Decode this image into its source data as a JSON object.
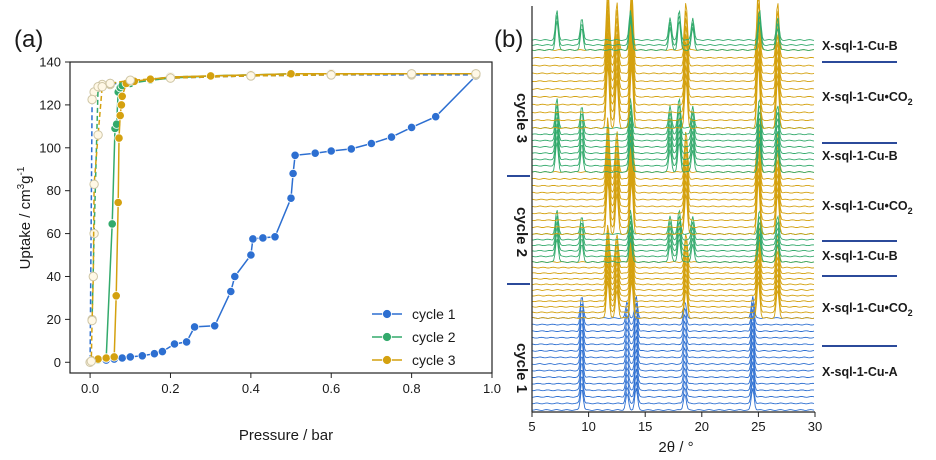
{
  "figure": {
    "panel_a_label": "(a)",
    "panel_b_label": "(b)"
  },
  "colors": {
    "cycle1": "#2d6fd1",
    "cycle2": "#33aa6c",
    "cycle3": "#d4a10f",
    "divider": "#2b4a9a",
    "axis": "#222222"
  },
  "chart_data": [
    {
      "type": "line",
      "panel": "(a)",
      "xlabel": "Pressure / bar",
      "ylabel": "Uptake / cm",
      "ylabel_sup1": "3",
      "ylabel_mid": "g",
      "ylabel_sup2": "-1",
      "xlim": [
        -0.05,
        1.0
      ],
      "ylim": [
        -5,
        140
      ],
      "xticks": [
        "0.0",
        "0.2",
        "0.4",
        "0.6",
        "0.8",
        "1.0"
      ],
      "xtick_values": [
        0.0,
        0.2,
        0.4,
        0.6,
        0.8,
        1.0
      ],
      "yticks": [
        "0",
        "20",
        "40",
        "60",
        "80",
        "100",
        "120",
        "140"
      ],
      "ytick_values": [
        0,
        20,
        40,
        60,
        80,
        100,
        120,
        140
      ],
      "legend_position": "bottom-right",
      "legend": [
        "cycle 1",
        "cycle 2",
        "cycle 3"
      ],
      "series": [
        {
          "name": "cycle 1",
          "branch": "adsorption",
          "color": "#2d6fd1",
          "x": [
            0.005,
            0.02,
            0.04,
            0.06,
            0.08,
            0.1,
            0.13,
            0.16,
            0.18,
            0.21,
            0.24,
            0.26,
            0.31,
            0.35,
            0.36,
            0.4,
            0.405,
            0.43,
            0.46,
            0.5,
            0.505,
            0.51,
            0.56,
            0.6,
            0.65,
            0.7,
            0.75,
            0.8,
            0.86,
            0.96
          ],
          "y": [
            0.5,
            0.8,
            1.0,
            1.5,
            2.0,
            2.5,
            3.0,
            4.0,
            5.0,
            8.5,
            9.5,
            16.5,
            17.0,
            33.0,
            40.0,
            50.0,
            57.5,
            58.0,
            58.5,
            76.5,
            88.0,
            96.5,
            97.5,
            98.5,
            99.5,
            102.0,
            105.0,
            109.5,
            114.5,
            133.5
          ]
        },
        {
          "name": "cycle 1",
          "branch": "desorption",
          "color": "#2d6fd1",
          "x": [
            0.96,
            0.8,
            0.6,
            0.4,
            0.2,
            0.1,
            0.05,
            0.02,
            0.01,
            0.005,
            0.0
          ],
          "y": [
            134.0,
            134.0,
            134.0,
            133.5,
            132.5,
            131.0,
            129.5,
            128.0,
            126.0,
            122.5,
            0.0
          ]
        },
        {
          "name": "cycle 2",
          "branch": "adsorption",
          "color": "#33aa6c",
          "x": [
            0.005,
            0.02,
            0.04,
            0.055,
            0.062,
            0.066,
            0.07,
            0.075,
            0.08,
            0.1,
            0.15,
            0.2,
            0.3,
            0.4,
            0.5,
            0.6,
            0.8,
            0.96
          ],
          "y": [
            0.5,
            1.0,
            2.0,
            64.5,
            109.0,
            111.0,
            126.0,
            128.0,
            129.0,
            130.0,
            131.5,
            132.5,
            133.5,
            134.0,
            134.5,
            134.5,
            134.5,
            134.5
          ]
        },
        {
          "name": "cycle 2",
          "branch": "desorption",
          "color": "#33aa6c",
          "x": [
            0.96,
            0.8,
            0.6,
            0.4,
            0.2,
            0.1,
            0.05,
            0.03,
            0.02,
            0.01,
            0.005
          ],
          "y": [
            134.5,
            134.5,
            134.5,
            134.0,
            133.0,
            131.0,
            130.0,
            129.5,
            128.5,
            60.0,
            20.0
          ]
        },
        {
          "name": "cycle 3",
          "branch": "adsorption",
          "color": "#d4a10f",
          "x": [
            0.005,
            0.02,
            0.04,
            0.06,
            0.065,
            0.07,
            0.072,
            0.075,
            0.078,
            0.08,
            0.09,
            0.11,
            0.15,
            0.2,
            0.3,
            0.4,
            0.5,
            0.6,
            0.8,
            0.96
          ],
          "y": [
            1.0,
            1.5,
            2.0,
            2.5,
            31.0,
            74.5,
            104.5,
            115.0,
            120.0,
            124.0,
            130.0,
            131.0,
            132.0,
            133.0,
            133.5,
            134.0,
            134.5,
            134.5,
            134.5,
            134.5
          ]
        },
        {
          "name": "cycle 3",
          "branch": "desorption",
          "color": "#d4a10f",
          "x": [
            0.96,
            0.8,
            0.6,
            0.4,
            0.2,
            0.1,
            0.05,
            0.03,
            0.02,
            0.01,
            0.008,
            0.005,
            0.003
          ],
          "y": [
            134.5,
            134.5,
            134.0,
            133.5,
            132.5,
            131.5,
            130.0,
            128.5,
            106.0,
            83.0,
            40.0,
            19.5,
            0.5
          ]
        }
      ]
    },
    {
      "type": "line",
      "panel": "(b)",
      "subtype": "stacked-diffraction-patterns",
      "xlabel": "2θ / °",
      "xlim": [
        5,
        30
      ],
      "xticks": [
        "5",
        "10",
        "15",
        "20",
        "25",
        "30"
      ],
      "xtick_values": [
        5,
        10,
        15,
        20,
        25,
        30
      ],
      "phase_labels": [
        {
          "text": "X-sql-1-Cu-B",
          "sub": ""
        },
        {
          "text": "X-sql-1-Cu•CO",
          "sub": "2"
        },
        {
          "text": "X-sql-1-Cu-B",
          "sub": ""
        },
        {
          "text": "X-sql-1-Cu•CO",
          "sub": "2"
        },
        {
          "text": "X-sql-1-Cu-B",
          "sub": ""
        },
        {
          "text": "X-sql-1-Cu•CO",
          "sub": "2"
        },
        {
          "text": "X-sql-1-Cu-A",
          "sub": ""
        }
      ],
      "cycle_labels": [
        "cycle 3",
        "cycle 2",
        "cycle 1"
      ],
      "phase_peaks_2theta": {
        "A": [
          9.4,
          13.4,
          14.2,
          18.5,
          24.5
        ],
        "CO2": [
          11.7,
          12.5,
          13.8,
          18.6,
          25.0,
          26.7
        ],
        "B": [
          7.2,
          9.4,
          13.7,
          17.2,
          18.0,
          19.2,
          25.1,
          26.7
        ]
      }
    }
  ]
}
